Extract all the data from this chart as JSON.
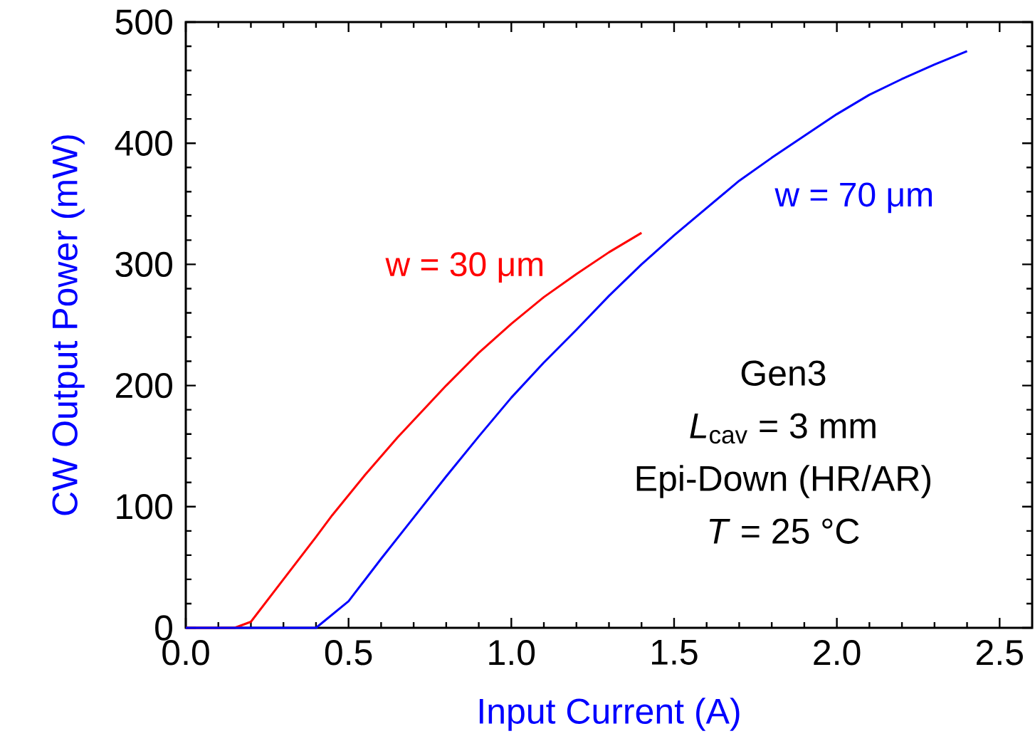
{
  "chart_data": {
    "type": "line",
    "xlabel": "Input Current (A)",
    "ylabel": "CW Output Power (mW)",
    "xlim": [
      0,
      2.6
    ],
    "ylim": [
      0,
      500
    ],
    "xticks": [
      {
        "value": 0,
        "label": "0.0"
      },
      {
        "value": 0.5,
        "label": "0.5"
      },
      {
        "value": 1,
        "label": "1.0"
      },
      {
        "value": 1.5,
        "label": "1.5"
      },
      {
        "value": 2,
        "label": "2.0"
      },
      {
        "value": 2.5,
        "label": "2.5"
      }
    ],
    "yticks": [
      0,
      100,
      200,
      300,
      400,
      500
    ],
    "marker": "none",
    "line_style": "solid",
    "annotations": [
      "Gen3",
      "*L*$_{cav}$ = 3 mm",
      "Epi-Down (HR/AR)",
      "*T* = 25 °C"
    ],
    "series": [
      {
        "name": "w = 30 μm",
        "color": "#ff0000",
        "x": [
          0,
          0.15,
          0.2,
          0.3,
          0.4,
          0.45,
          0.55,
          0.65,
          0.8,
          0.9,
          1.0,
          1.1,
          1.2,
          1.3,
          1.4
        ],
        "values": [
          0,
          0,
          5,
          40,
          75,
          93,
          126,
          157,
          200,
          227,
          251,
          273,
          292,
          310,
          326
        ]
      },
      {
        "name": "w = 70 μm",
        "color": "#0000ff",
        "x": [
          0,
          0.4,
          0.5,
          0.6,
          0.7,
          0.8,
          0.9,
          1.0,
          1.1,
          1.2,
          1.3,
          1.4,
          1.5,
          1.7,
          1.8,
          1.9,
          2.0,
          2.1,
          2.2,
          2.3,
          2.4
        ],
        "values": [
          0,
          0,
          22,
          57,
          91,
          125,
          158,
          190,
          219,
          246,
          274,
          300,
          324,
          369,
          388,
          406,
          424,
          440,
          453,
          465,
          476
        ]
      }
    ]
  }
}
